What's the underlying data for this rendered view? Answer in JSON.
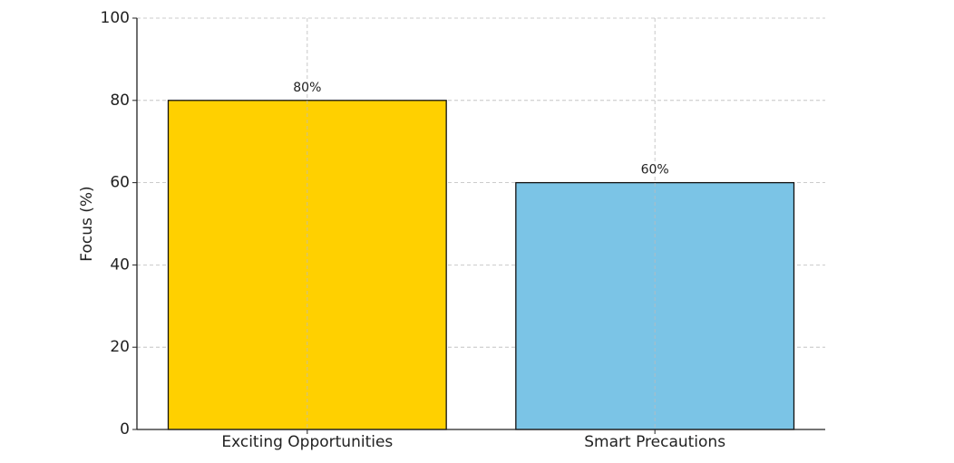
{
  "chart_data": {
    "type": "bar",
    "ylabel": "Focus (%)",
    "categories": [
      "Exciting Opportunities",
      "Smart Precautions"
    ],
    "values": [
      80,
      60
    ],
    "value_labels": [
      "80%",
      "60%"
    ],
    "colors": [
      "#ffd000",
      "#7bc4e6"
    ],
    "ylim": [
      0,
      100
    ],
    "yticks": [
      0,
      20,
      40,
      60,
      80,
      100
    ],
    "grid": true
  }
}
